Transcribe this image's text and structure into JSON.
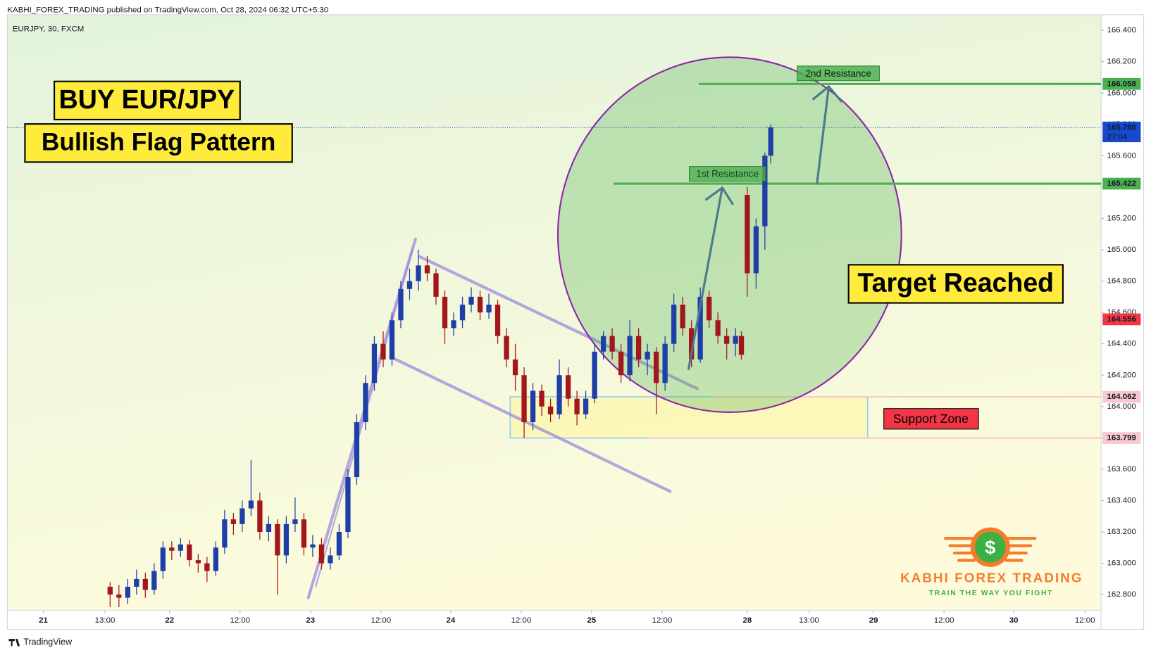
{
  "chart_data": {
    "type": "candlestick",
    "header": "KABHI_FOREX_TRADING published on TradingView.com, Oct 28, 2024 06:32 UTC+5:30",
    "symbol": "EURJPY, 30, FXCM",
    "footer": "TradingView",
    "up_color": "#1f3fa8",
    "down_color": "#a3161c",
    "xlim": [
      0,
      372.5
    ],
    "ylim": [
      162.7,
      166.5
    ],
    "yticks": [
      {
        "value": 162.8,
        "label": "162.800"
      },
      {
        "value": 163.0,
        "label": "163.000"
      },
      {
        "value": 163.2,
        "label": "163.200"
      },
      {
        "value": 163.4,
        "label": "163.400"
      },
      {
        "value": 163.6,
        "label": "163.600"
      },
      {
        "value": 163.8,
        "label": "163.800"
      },
      {
        "value": 164.0,
        "label": "164.000"
      },
      {
        "value": 164.2,
        "label": "164.200"
      },
      {
        "value": 164.4,
        "label": "164.400"
      },
      {
        "value": 164.6,
        "label": "164.600"
      },
      {
        "value": 164.8,
        "label": "164.800"
      },
      {
        "value": 165.0,
        "label": "165.000"
      },
      {
        "value": 165.2,
        "label": "165.200"
      },
      {
        "value": 165.4,
        "label": "165.400"
      },
      {
        "value": 165.6,
        "label": "165.600"
      },
      {
        "value": 165.8,
        "label": "165.800"
      },
      {
        "value": 166.0,
        "label": "166.000"
      },
      {
        "value": 166.2,
        "label": "166.200"
      },
      {
        "value": 166.4,
        "label": "166.400"
      }
    ],
    "xticks": [
      {
        "value": 12.25,
        "label": "21"
      },
      {
        "value": 33.25,
        "label": "13:00"
      },
      {
        "value": 55.25,
        "label": "22"
      },
      {
        "value": 79.25,
        "label": "12:00"
      },
      {
        "value": 103.25,
        "label": "23"
      },
      {
        "value": 127.25,
        "label": "12:00"
      },
      {
        "value": 151,
        "label": "24"
      },
      {
        "value": 175,
        "label": "12:00"
      },
      {
        "value": 199,
        "label": "25"
      },
      {
        "value": 223,
        "label": "12:00"
      },
      {
        "value": 252,
        "label": "28"
      },
      {
        "value": 273,
        "label": "13:00"
      },
      {
        "value": 295,
        "label": "29"
      },
      {
        "value": 319,
        "label": "12:00"
      },
      {
        "value": 342.75,
        "label": "30"
      },
      {
        "value": 367,
        "label": "12:00"
      }
    ],
    "candles": [
      [
        35,
        162.85,
        162.88,
        162.72,
        162.8
      ],
      [
        38,
        162.8,
        162.86,
        162.72,
        162.78
      ],
      [
        41,
        162.78,
        162.9,
        162.74,
        162.85
      ],
      [
        44,
        162.85,
        162.96,
        162.8,
        162.9
      ],
      [
        47,
        162.9,
        162.94,
        162.78,
        162.83
      ],
      [
        50,
        162.83,
        163.0,
        162.8,
        162.95
      ],
      [
        53,
        162.95,
        163.14,
        162.9,
        163.1
      ],
      [
        56,
        163.1,
        163.14,
        163.02,
        163.08
      ],
      [
        59,
        163.08,
        163.16,
        163.04,
        163.12
      ],
      [
        62,
        163.12,
        163.15,
        162.98,
        163.02
      ],
      [
        65,
        163.02,
        163.06,
        162.94,
        163.0
      ],
      [
        68,
        163.0,
        163.04,
        162.88,
        162.95
      ],
      [
        71,
        162.95,
        163.14,
        162.92,
        163.1
      ],
      [
        74,
        163.1,
        163.34,
        163.06,
        163.28
      ],
      [
        77,
        163.28,
        163.32,
        163.18,
        163.25
      ],
      [
        80,
        163.25,
        163.4,
        163.2,
        163.35
      ],
      [
        83,
        163.35,
        163.66,
        163.3,
        163.4
      ],
      [
        86,
        163.4,
        163.45,
        163.15,
        163.2
      ],
      [
        89,
        163.2,
        163.3,
        163.14,
        163.25
      ],
      [
        92,
        163.25,
        163.28,
        162.8,
        163.05
      ],
      [
        95,
        163.05,
        163.3,
        163.0,
        163.25
      ],
      [
        98,
        163.25,
        163.42,
        163.2,
        163.28
      ],
      [
        101,
        163.28,
        163.32,
        163.05,
        163.1
      ],
      [
        104,
        163.1,
        163.18,
        163.04,
        163.12
      ],
      [
        107,
        163.12,
        163.16,
        162.96,
        163.0
      ],
      [
        110,
        163.0,
        163.1,
        162.96,
        163.05
      ],
      [
        113,
        163.05,
        163.25,
        163.02,
        163.2
      ],
      [
        116,
        163.2,
        163.6,
        163.16,
        163.55
      ],
      [
        119,
        163.55,
        163.95,
        163.5,
        163.9
      ],
      [
        122,
        163.9,
        164.2,
        163.85,
        164.15
      ],
      [
        125,
        164.15,
        164.45,
        164.1,
        164.4
      ],
      [
        128,
        164.4,
        164.48,
        164.25,
        164.3
      ],
      [
        131,
        164.3,
        164.6,
        164.26,
        164.55
      ],
      [
        134,
        164.55,
        164.8,
        164.5,
        164.75
      ],
      [
        137,
        164.75,
        164.88,
        164.68,
        164.8
      ],
      [
        140,
        164.8,
        165.0,
        164.74,
        164.9
      ],
      [
        143,
        164.9,
        164.96,
        164.8,
        164.85
      ],
      [
        146,
        164.85,
        164.88,
        164.65,
        164.7
      ],
      [
        149,
        164.7,
        164.74,
        164.4,
        164.5
      ],
      [
        152,
        164.5,
        164.6,
        164.45,
        164.55
      ],
      [
        155,
        164.55,
        164.7,
        164.5,
        164.65
      ],
      [
        158,
        164.65,
        164.76,
        164.6,
        164.7
      ],
      [
        161,
        164.7,
        164.74,
        164.55,
        164.6
      ],
      [
        164,
        164.6,
        164.72,
        164.56,
        164.65
      ],
      [
        167,
        164.65,
        164.68,
        164.4,
        164.45
      ],
      [
        170,
        164.45,
        164.5,
        164.25,
        164.3
      ],
      [
        173,
        164.3,
        164.4,
        164.1,
        164.2
      ],
      [
        176,
        164.2,
        164.25,
        163.8,
        163.9
      ],
      [
        179,
        163.9,
        164.15,
        163.85,
        164.1
      ],
      [
        182,
        164.1,
        164.14,
        163.94,
        164.0
      ],
      [
        185,
        164.0,
        164.05,
        163.9,
        163.95
      ],
      [
        188,
        163.95,
        164.3,
        163.92,
        164.2
      ],
      [
        191,
        164.2,
        164.25,
        164.0,
        164.05
      ],
      [
        194,
        164.05,
        164.1,
        163.88,
        163.95
      ],
      [
        197,
        163.95,
        164.1,
        163.92,
        164.05
      ],
      [
        200,
        164.05,
        164.4,
        164.02,
        164.35
      ],
      [
        203,
        164.35,
        164.48,
        164.3,
        164.45
      ],
      [
        206,
        164.45,
        164.5,
        164.3,
        164.35
      ],
      [
        209,
        164.35,
        164.4,
        164.15,
        164.2
      ],
      [
        212,
        164.2,
        164.55,
        164.16,
        164.45
      ],
      [
        215,
        164.45,
        164.5,
        164.25,
        164.3
      ],
      [
        218,
        164.3,
        164.4,
        164.2,
        164.35
      ],
      [
        221,
        164.35,
        164.38,
        163.95,
        164.15
      ],
      [
        224,
        164.15,
        164.45,
        164.1,
        164.4
      ],
      [
        227,
        164.4,
        164.72,
        164.35,
        164.65
      ],
      [
        230,
        164.65,
        164.7,
        164.45,
        164.5
      ],
      [
        233,
        164.5,
        164.55,
        164.25,
        164.3
      ],
      [
        236,
        164.3,
        164.76,
        164.28,
        164.7
      ],
      [
        239,
        164.7,
        164.74,
        164.5,
        164.55
      ],
      [
        242,
        164.55,
        164.6,
        164.4,
        164.45
      ],
      [
        245,
        164.45,
        164.5,
        164.3,
        164.4
      ],
      [
        248,
        164.4,
        164.5,
        164.32,
        164.45
      ],
      [
        250,
        164.45,
        164.48,
        164.3,
        164.33
      ],
      [
        252,
        165.35,
        165.4,
        164.7,
        164.85
      ],
      [
        255,
        164.85,
        165.2,
        164.75,
        165.15
      ],
      [
        258,
        165.15,
        165.62,
        165.0,
        165.6
      ],
      [
        260,
        165.6,
        165.8,
        165.55,
        165.78
      ]
    ],
    "price_labels": [
      {
        "value": 166.058,
        "color": "#4caf50",
        "text_color": "#ffffff"
      },
      {
        "value": 165.78,
        "label": "165.780",
        "color": "#1848cc",
        "text_color": "#ffffff"
      },
      {
        "value": 165.422,
        "color": "#4caf50",
        "text_color": "#ffffff"
      },
      {
        "value": 164.556,
        "color": "#f23645",
        "text_color": "#ffffff"
      },
      {
        "value": 164.062,
        "color": "#f8c8cc",
        "text_color": "#131722"
      },
      {
        "value": 163.799,
        "color": "#f8c8cc",
        "text_color": "#131722"
      }
    ],
    "countdown": "27:04",
    "annotations": {
      "buy": "BUY EUR/JPY",
      "pattern": "Bullish Flag Pattern",
      "target": "Target Reached",
      "support": "Support Zone",
      "r1": "1st Resistance",
      "r2": "2nd Resistance"
    },
    "brand": {
      "symbol": "$",
      "name": "KABHI FOREX TRADING",
      "tagline": "TRAIN THE WAY YOU FIGHT"
    }
  }
}
